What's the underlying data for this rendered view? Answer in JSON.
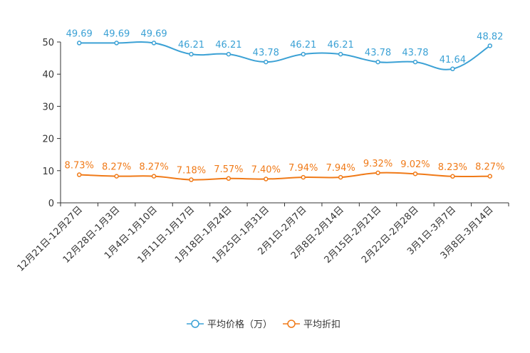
{
  "colors": {
    "series1": "#3ba1d5",
    "series2": "#f07a18",
    "axis": "#333333"
  },
  "chart_data": {
    "type": "line",
    "categories": [
      "12月21日-12月27日",
      "12月28日-1月3日",
      "1月4日-1月10日",
      "1月11日-1月17日",
      "1月18日-1月24日",
      "1月25日-1月31日",
      "2月1日-2月7日",
      "2月8日-2月14日",
      "2月15日-2月21日",
      "2月22日-2月28日",
      "3月1日-3月7日",
      "3月8日-3月14日"
    ],
    "y_ticks": [
      "0",
      "10",
      "20",
      "30",
      "40",
      "50"
    ],
    "ylim": [
      0,
      50
    ],
    "series": [
      {
        "name": "平均价格（万）",
        "values": [
          49.69,
          49.69,
          49.69,
          46.21,
          46.21,
          43.78,
          46.21,
          46.21,
          43.78,
          43.78,
          41.64,
          48.82
        ],
        "labels": [
          "49.69",
          "49.69",
          "49.69",
          "46.21",
          "46.21",
          "43.78",
          "46.21",
          "46.21",
          "43.78",
          "43.78",
          "41.64",
          "48.82"
        ]
      },
      {
        "name": "平均折扣",
        "values": [
          8.73,
          8.27,
          8.27,
          7.18,
          7.57,
          7.4,
          7.94,
          7.94,
          9.32,
          9.02,
          8.23,
          8.27
        ],
        "labels": [
          "8.73%",
          "8.27%",
          "8.27%",
          "7.18%",
          "7.57%",
          "7.40%",
          "7.94%",
          "7.94%",
          "9.32%",
          "9.02%",
          "8.23%",
          "8.27%"
        ]
      }
    ]
  }
}
